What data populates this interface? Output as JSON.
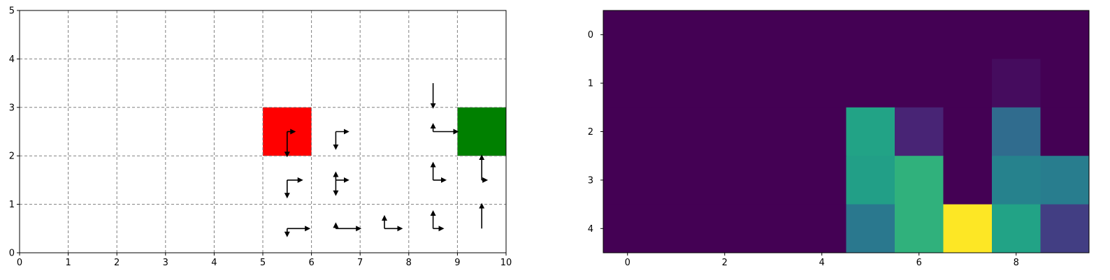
{
  "chart_data": [
    {
      "type": "scatter",
      "xlim": [
        0,
        10
      ],
      "ylim": [
        0,
        5
      ],
      "x_ticks": [
        "0",
        "1",
        "2",
        "3",
        "4",
        "5",
        "6",
        "7",
        "8",
        "9",
        "10"
      ],
      "y_ticks": [
        "0",
        "1",
        "2",
        "3",
        "4",
        "5"
      ],
      "grid": true,
      "cells": [
        {
          "name": "start-cell",
          "x": 5,
          "y": 2,
          "w": 1,
          "h": 1,
          "color": "#ff0000"
        },
        {
          "name": "goal-cell",
          "x": 9,
          "y": 2,
          "w": 1,
          "h": 1,
          "color": "#008000"
        }
      ],
      "arrows": [
        {
          "x": 8.5,
          "y": 3.5,
          "dx": 0,
          "dy": -0.5
        },
        {
          "x": 5.5,
          "y": 2.5,
          "dx": 0,
          "dy": -0.5
        },
        {
          "x": 5.5,
          "y": 2.5,
          "dx": 0.15,
          "dy": 0
        },
        {
          "x": 6.5,
          "y": 2.5,
          "dx": 0,
          "dy": -0.35
        },
        {
          "x": 6.5,
          "y": 2.5,
          "dx": 0.25,
          "dy": 0
        },
        {
          "x": 8.5,
          "y": 2.5,
          "dx": 0,
          "dy": 0.15
        },
        {
          "x": 8.5,
          "y": 2.5,
          "dx": 0.5,
          "dy": 0
        },
        {
          "x": 5.5,
          "y": 1.5,
          "dx": 0,
          "dy": -0.35
        },
        {
          "x": 5.5,
          "y": 1.5,
          "dx": 0.3,
          "dy": 0
        },
        {
          "x": 6.5,
          "y": 1.5,
          "dx": 0,
          "dy": 0.15
        },
        {
          "x": 6.5,
          "y": 1.5,
          "dx": 0,
          "dy": -0.3
        },
        {
          "x": 6.5,
          "y": 1.5,
          "dx": 0.25,
          "dy": 0
        },
        {
          "x": 8.5,
          "y": 1.5,
          "dx": 0,
          "dy": 0.35
        },
        {
          "x": 8.5,
          "y": 1.5,
          "dx": 0.25,
          "dy": 0
        },
        {
          "x": 9.5,
          "y": 1.5,
          "dx": 0,
          "dy": 0.5
        },
        {
          "x": 9.5,
          "y": 1.5,
          "dx": 0.1,
          "dy": 0
        },
        {
          "x": 5.5,
          "y": 0.5,
          "dx": 0,
          "dy": -0.15
        },
        {
          "x": 5.5,
          "y": 0.5,
          "dx": 0.45,
          "dy": 0
        },
        {
          "x": 6.5,
          "y": 0.5,
          "dx": 0,
          "dy": 0.1
        },
        {
          "x": 6.5,
          "y": 0.5,
          "dx": 0.5,
          "dy": 0
        },
        {
          "x": 7.5,
          "y": 0.5,
          "dx": 0,
          "dy": 0.25
        },
        {
          "x": 7.5,
          "y": 0.5,
          "dx": 0.35,
          "dy": 0
        },
        {
          "x": 8.5,
          "y": 0.5,
          "dx": 0,
          "dy": 0.35
        },
        {
          "x": 8.5,
          "y": 0.5,
          "dx": 0.2,
          "dy": 0
        },
        {
          "x": 9.5,
          "y": 0.5,
          "dx": 0,
          "dy": 0.5
        }
      ]
    },
    {
      "type": "heatmap",
      "colormap": "viridis",
      "vmin": 0,
      "vmax": 1,
      "x_ticks": [
        0,
        2,
        4,
        6,
        8
      ],
      "y_ticks": [
        0,
        1,
        2,
        3,
        4
      ],
      "rows": [
        [
          0,
          0,
          0,
          0,
          0,
          0,
          0,
          0,
          0,
          0
        ],
        [
          0,
          0,
          0,
          0,
          0,
          0,
          0,
          0,
          0.03,
          0
        ],
        [
          0,
          0,
          0,
          0,
          0,
          0.58,
          0.1,
          0,
          0.35,
          0
        ],
        [
          0,
          0,
          0,
          0,
          0,
          0.56,
          0.64,
          0,
          0.44,
          0.42
        ],
        [
          0,
          0,
          0,
          0,
          0,
          0.4,
          0.64,
          1.0,
          0.58,
          0.18
        ]
      ]
    }
  ]
}
